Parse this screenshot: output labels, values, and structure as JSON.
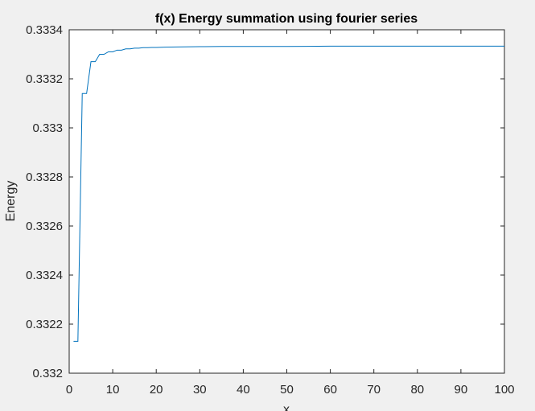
{
  "figure": {
    "background": "#f0f0f0"
  },
  "chart_data": {
    "type": "line",
    "title": "f(x) Energy summation using fourier series",
    "xlabel": "x",
    "ylabel": "Energy",
    "xlim": [
      0,
      100
    ],
    "ylim": [
      0.332,
      0.3334
    ],
    "xticks": [
      0,
      10,
      20,
      30,
      40,
      50,
      60,
      70,
      80,
      90,
      100
    ],
    "xtick_labels": [
      "0",
      "10",
      "20",
      "30",
      "40",
      "50",
      "60",
      "70",
      "80",
      "90",
      "100"
    ],
    "yticks": [
      0.332,
      0.3322,
      0.3324,
      0.3326,
      0.3328,
      0.333,
      0.3332,
      0.3334
    ],
    "ytick_labels": [
      "0.332",
      "0.3322",
      "0.3324",
      "0.3326",
      "0.3328",
      "0.333",
      "0.3332",
      "0.3334"
    ],
    "grid": false,
    "box": true,
    "series_color": "#0072bd",
    "series": [
      {
        "x": [
          1,
          2,
          3,
          4,
          5,
          6,
          7,
          8,
          9,
          10,
          11,
          12,
          13,
          14,
          15,
          16,
          17,
          18,
          19,
          20,
          22,
          25,
          30,
          35,
          40,
          50,
          60,
          70,
          80,
          90,
          100
        ],
        "values": [
          0.33213,
          0.33213,
          0.33314,
          0.33314,
          0.33327,
          0.33327,
          0.3333,
          0.3333,
          0.33331,
          0.33331,
          0.333317,
          0.333317,
          0.333322,
          0.333322,
          0.333325,
          0.333325,
          0.333327,
          0.333327,
          0.333328,
          0.333328,
          0.333329,
          0.33333,
          0.333331,
          0.333332,
          0.333332,
          0.333332,
          0.333333,
          0.333333,
          0.333333,
          0.333333,
          0.333333
        ]
      }
    ]
  }
}
